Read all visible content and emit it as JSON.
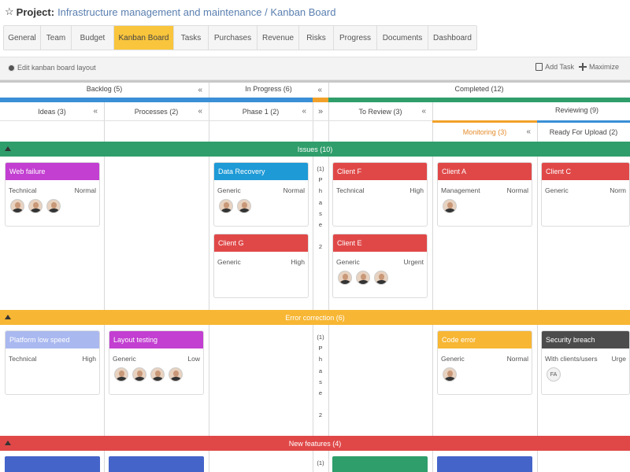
{
  "header": {
    "star_icon": "star-icon",
    "project_label": "Project:",
    "project_name": "Infrastructure management and maintenance / Kanban Board"
  },
  "tabs": [
    {
      "label": "General"
    },
    {
      "label": "Team"
    },
    {
      "label": "Budget"
    },
    {
      "label": "Kanban Board"
    },
    {
      "label": "Tasks"
    },
    {
      "label": "Purchases"
    },
    {
      "label": "Revenue"
    },
    {
      "label": "Risks"
    },
    {
      "label": "Progress"
    },
    {
      "label": "Documents"
    },
    {
      "label": "Dashboard"
    }
  ],
  "active_tab": "Kanban Board",
  "toolbar": {
    "edit_layout": "Edit kanban board layout",
    "add_task": "Add Task",
    "maximize": "Maximize"
  },
  "groups": {
    "backlog": "Backlog (5)",
    "in_progress": "In Progress (6)",
    "completed": "Completed (12)",
    "reviewing": "Reviewing (9)"
  },
  "columns": {
    "ideas": "Ideas (3)",
    "processes": "Processes (2)",
    "phase1": "Phase 1 (2)",
    "to_review": "To Review (3)",
    "monitoring": "Monitoring (3)",
    "ready": "Ready For Upload (2)"
  },
  "collapse_glyph": "«",
  "expand_glyph": "»",
  "lanes": {
    "issues": "Issues (10)",
    "error": "Error correction (6)",
    "features": "New features (4)"
  },
  "phase_text": {
    "count": "(1)",
    "letters": [
      "P",
      "h",
      "a",
      "s",
      "e",
      " ",
      "2"
    ]
  },
  "cards": {
    "c1": {
      "title": "Web failure",
      "cat": "Technical",
      "prio": "Normal"
    },
    "c2": {
      "title": "Data Recovery",
      "cat": "Generic",
      "prio": "Normal"
    },
    "c3": {
      "title": "Client G",
      "cat": "Generic",
      "prio": "High"
    },
    "c4": {
      "title": "Client F",
      "cat": "Technical",
      "prio": "High"
    },
    "c5": {
      "title": "Client E",
      "cat": "Generic",
      "prio": "Urgent"
    },
    "c6": {
      "title": "Client A",
      "cat": "Management",
      "prio": "Normal"
    },
    "c7": {
      "title": "Client C",
      "cat": "Generic",
      "prio": "Norm"
    },
    "c8": {
      "title": "Platform low speed",
      "cat": "Technical",
      "prio": "High"
    },
    "c9": {
      "title": "Layout testing",
      "cat": "Generic",
      "prio": "Low"
    },
    "c10": {
      "title": "Code error",
      "cat": "Generic",
      "prio": "Normal"
    },
    "c11": {
      "title": "Security breach",
      "cat": "With clients/users",
      "prio": "Urge"
    }
  },
  "initials": "FA",
  "colors": {
    "active_tab": "#f9c53c",
    "issues_lane": "#2f9e6b",
    "error_lane": "#f7b633",
    "features_lane": "#e04848",
    "purple": "#c23fd1",
    "blue": "#1e9ad6",
    "red": "#e04848",
    "light_blue": "#a9b8ef",
    "orange": "#f7b633",
    "dark": "#4c4c4c",
    "green": "#2f9e6b",
    "navy": "#4564c9"
  }
}
